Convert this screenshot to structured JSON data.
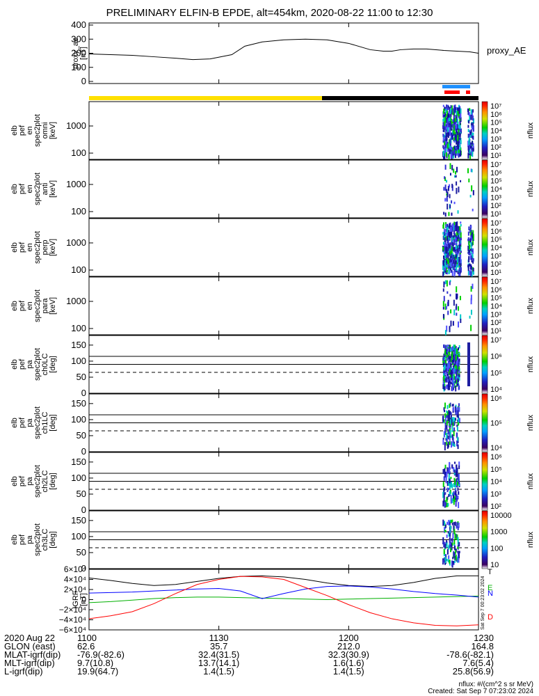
{
  "title": "PRELIMINARY ELFIN-B EPDE, alt=454km, 2020-08-22 11:00 to 12:30",
  "colors": {
    "yellow_bar": "#FFE000",
    "blue_bar": "#1E90FF",
    "red_bar": "#FF0000",
    "spec_dark": "#1E1EA0",
    "spec_cyan": "#00C8C8",
    "spec_green": "#00D000",
    "line_black": "#000000",
    "line_blue": "#0000FF",
    "line_green": "#00B000",
    "line_red": "#FF0000"
  },
  "icons": {
    "colorbar": "rainbow-colorbar-icon"
  },
  "chart_data": [
    {
      "type": "line",
      "ylabel_lines": [
        "proxy_ae",
        "[nT]"
      ],
      "series": [
        {
          "name": "proxy_AE",
          "x": [
            "11:00",
            "11:05",
            "11:10",
            "11:15",
            "11:20",
            "11:24",
            "11:28",
            "11:33",
            "11:36",
            "11:40",
            "11:45",
            "11:50",
            "11:55",
            "12:00",
            "12:05",
            "12:08",
            "12:10",
            "12:12",
            "12:15",
            "12:18",
            "12:22",
            "12:25",
            "12:28",
            "12:30"
          ],
          "values": [
            195,
            190,
            185,
            175,
            165,
            155,
            160,
            190,
            250,
            280,
            295,
            300,
            295,
            270,
            225,
            215,
            215,
            225,
            230,
            230,
            220,
            215,
            210,
            200
          ]
        }
      ],
      "ylim": [
        0,
        400
      ],
      "yticks": [
        "400",
        "300",
        "200",
        "100",
        "0"
      ]
    },
    {
      "type": "heatmap",
      "ylabel_lines": [
        "elb",
        "pef",
        "en",
        "spec2plot",
        "omni",
        "[keV]"
      ],
      "yticks": [
        "1000",
        "100"
      ],
      "colorbar_ticks": [
        "10⁷",
        "10⁶",
        "10⁵",
        "10⁴",
        "10³",
        "10²",
        "10¹"
      ],
      "colorbar_label": "nflux"
    },
    {
      "type": "heatmap",
      "ylabel_lines": [
        "elb",
        "pef",
        "en",
        "spec2plot",
        "anti",
        "[keV]"
      ],
      "yticks": [
        "1000",
        "100"
      ],
      "colorbar_ticks": [
        "10⁷",
        "10⁶",
        "10⁵",
        "10⁴",
        "10³",
        "10²",
        "10¹"
      ],
      "colorbar_label": "nflux"
    },
    {
      "type": "heatmap",
      "ylabel_lines": [
        "elb",
        "pef",
        "en",
        "spec2plot",
        "perp",
        "[keV]"
      ],
      "yticks": [
        "1000",
        "100"
      ],
      "colorbar_ticks": [
        "10⁷",
        "10⁶",
        "10⁵",
        "10⁴",
        "10³",
        "10²",
        "10¹"
      ],
      "colorbar_label": "nflux"
    },
    {
      "type": "heatmap",
      "ylabel_lines": [
        "elb",
        "pef",
        "en",
        "spec2plot",
        "para",
        "[keV]"
      ],
      "yticks": [
        "1000",
        "100"
      ],
      "colorbar_ticks": [
        "10⁷",
        "10⁶",
        "10⁵",
        "10⁴",
        "10³",
        "10²",
        "10¹"
      ],
      "colorbar_label": "nflux"
    },
    {
      "type": "heatmap",
      "ylabel_lines": [
        "elb",
        "pef",
        "pa",
        "spec2plot",
        "ch0LC",
        "[deg]"
      ],
      "yticks": [
        "150",
        "100",
        "50",
        "0"
      ],
      "colorbar_ticks": [
        "10⁷",
        "10⁶",
        "10⁵",
        "10⁴"
      ],
      "colorbar_label": "nflux"
    },
    {
      "type": "heatmap",
      "ylabel_lines": [
        "elb",
        "pef",
        "pa",
        "spec2plot",
        "ch1LC",
        "[deg]"
      ],
      "yticks": [
        "150",
        "100",
        "50",
        "0"
      ],
      "colorbar_ticks": [
        "10⁶",
        "10⁵",
        "10⁴"
      ],
      "colorbar_label": "nflux"
    },
    {
      "type": "heatmap",
      "ylabel_lines": [
        "elb",
        "pef",
        "pa",
        "spec2plot",
        "ch2LC",
        "[deg]"
      ],
      "yticks": [
        "150",
        "100",
        "50",
        "0"
      ],
      "colorbar_ticks": [
        "10⁶",
        "10⁵",
        "10⁴",
        "10³",
        "10²"
      ],
      "colorbar_label": "nflux"
    },
    {
      "type": "heatmap",
      "ylabel_lines": [
        "elb",
        "pef",
        "pa",
        "spec2plot",
        "ch3LC",
        "[deg]"
      ],
      "yticks": [
        "150",
        "100",
        "50",
        "0"
      ],
      "colorbar_ticks": [
        "10000",
        "1000",
        "100",
        "10"
      ],
      "colorbar_label": "nflux"
    },
    {
      "type": "line",
      "ylabel_lines": [
        "IGRF",
        "[nT]"
      ],
      "ylim": [
        -60000,
        60000
      ],
      "yticks": [
        "6×10⁴",
        "4×10⁴",
        "2×10⁴",
        "0",
        "−2×10⁴",
        "−4×10⁴",
        "−6×10⁴"
      ],
      "x": [
        "11:00",
        "11:05",
        "11:10",
        "11:15",
        "11:20",
        "11:25",
        "11:30",
        "11:35",
        "11:40",
        "11:45",
        "11:50",
        "11:55",
        "12:00",
        "12:05",
        "12:10",
        "12:15",
        "12:20",
        "12:25",
        "12:30"
      ],
      "series": [
        {
          "name": "T",
          "values": [
            43000,
            38000,
            32000,
            28000,
            30000,
            36000,
            42000,
            46000,
            47000,
            45000,
            40000,
            33000,
            28000,
            26000,
            28000,
            34000,
            42000,
            47000,
            47000
          ]
        },
        {
          "name": "E",
          "values": [
            -6000,
            -4000,
            -1000,
            2000,
            4000,
            5000,
            5000,
            4000,
            3000,
            2000,
            1000,
            0,
            1000,
            2000,
            3000,
            4000,
            5000,
            6000,
            7000
          ]
        },
        {
          "name": "N",
          "values": [
            13000,
            14000,
            15000,
            17000,
            19000,
            21000,
            22000,
            17000,
            2000,
            12000,
            21000,
            26000,
            27000,
            25000,
            21000,
            16000,
            12000,
            9000,
            5000
          ]
        },
        {
          "name": "D",
          "values": [
            -38000,
            -32000,
            -24000,
            -8000,
            12000,
            30000,
            40000,
            46000,
            45000,
            40000,
            24000,
            8000,
            -10000,
            -26000,
            -38000,
            -46000,
            -51000,
            -52000,
            -50000
          ]
        }
      ]
    }
  ],
  "time_labels": [
    "1100",
    "1130",
    "1200",
    "1230"
  ],
  "footer": {
    "rows": [
      {
        "label": "2020 Aug 22",
        "v": [
          "1100",
          "1130",
          "1200",
          "1230"
        ]
      },
      {
        "label": "GLON (east)",
        "v": [
          "62.6",
          "35.7",
          "212.0",
          "164.8"
        ]
      },
      {
        "label": "MLAT-igrf(dip)",
        "v": [
          "-76.9(-82.6)",
          "32.4(31.5)",
          "32.3(30.9)",
          "-78.6(-82.1)"
        ]
      },
      {
        "label": "MLT-igrf(dip)",
        "v": [
          "9.7(10.8)",
          "13.7(14.1)",
          "1.6(1.6)",
          "7.6(5.4)"
        ]
      },
      {
        "label": "L-igrf(dip)",
        "v": [
          "19.9(64.7)",
          "1.4(1.5)",
          "1.4(1.5)",
          "25.8(56.9)"
        ]
      }
    ],
    "nflux_units": "nflux: #/(cm^2 s sr MeV)",
    "created": "Created: Sat Sep  7 07:23:02 2024",
    "side_stamp": "Sat Sep  7 00:23:02 2024"
  }
}
